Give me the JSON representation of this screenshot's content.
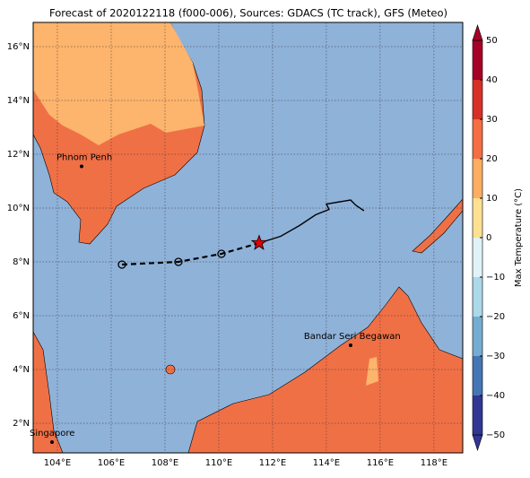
{
  "map": {
    "title": "Forecast of 2020122118 (f000-006), Sources: GDACS (TC track), GFS (Meteo)",
    "lon_range": [
      103.1,
      119.07
    ],
    "lat_range": [
      0.9,
      16.9
    ],
    "lon_ticks": [
      {
        "value": 104,
        "label": "104°E"
      },
      {
        "value": 106,
        "label": "106°E"
      },
      {
        "value": 108,
        "label": "108°E"
      },
      {
        "value": 110,
        "label": "110°E"
      },
      {
        "value": 112,
        "label": "112°E"
      },
      {
        "value": 114,
        "label": "114°E"
      },
      {
        "value": 116,
        "label": "116°E"
      },
      {
        "value": 118,
        "label": "118°E"
      }
    ],
    "lat_ticks": [
      {
        "value": 2,
        "label": "2°N"
      },
      {
        "value": 4,
        "label": "4°N"
      },
      {
        "value": 6,
        "label": "6°N"
      },
      {
        "value": 8,
        "label": "8°N"
      },
      {
        "value": 10,
        "label": "10°N"
      },
      {
        "value": 12,
        "label": "12°N"
      },
      {
        "value": 14,
        "label": "14°N"
      },
      {
        "value": 16,
        "label": "16°N"
      }
    ],
    "places": [
      {
        "name": "Phnom Penh",
        "lon": 104.9,
        "lat": 11.55
      },
      {
        "name": "Bandar Seri Begawan",
        "lon": 114.9,
        "lat": 4.9
      },
      {
        "name": "Singapore",
        "lon": 103.8,
        "lat": 1.3
      }
    ],
    "forecast_track": {
      "lon": [
        106.4,
        108.5,
        110.1,
        111.5
      ],
      "lat": [
        7.9,
        8.0,
        8.3,
        8.7
      ]
    },
    "current_position": {
      "lon": 111.5,
      "lat": 8.7
    },
    "past_track": {
      "lon": [
        111.5,
        112.3,
        113.0,
        113.6,
        114.1,
        114.0,
        114.9,
        115.1,
        115.4
      ],
      "lat": [
        8.7,
        8.95,
        9.35,
        9.75,
        9.95,
        10.15,
        10.3,
        10.1,
        9.9
      ]
    },
    "colorbar": {
      "label": "Max Temperature (°C)",
      "lim": [
        -50,
        50
      ],
      "ticks": [
        {
          "value": -50,
          "label": "−50"
        },
        {
          "value": -40,
          "label": "−40"
        },
        {
          "value": -30,
          "label": "−30"
        },
        {
          "value": -20,
          "label": "−20"
        },
        {
          "value": -10,
          "label": "−10"
        },
        0,
        10,
        20,
        30,
        40,
        50
      ],
      "colors": [
        "#313695",
        "#4575b4",
        "#74add1",
        "#abd9e9",
        "#e0f3f8",
        "#fee090",
        "#fdae61",
        "#f46d43",
        "#d73027",
        "#a50026"
      ]
    }
  }
}
